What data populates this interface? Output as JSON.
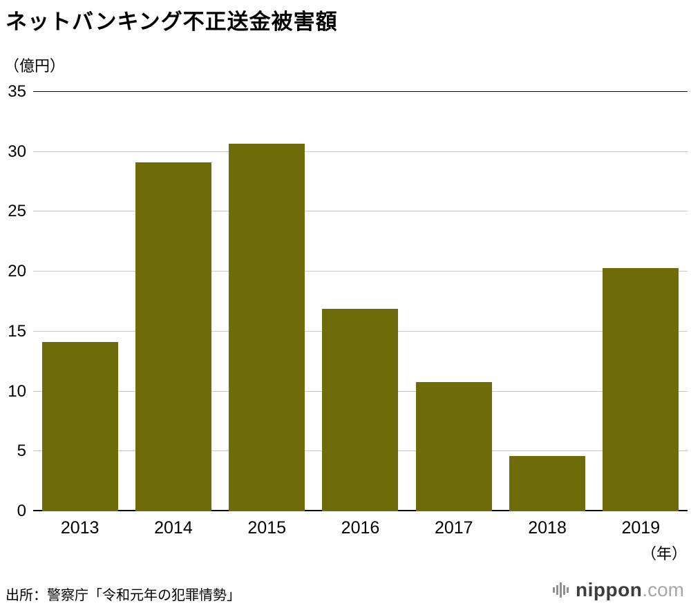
{
  "title": "ネットバンキング不正送金被害額",
  "y_unit": "（億円）",
  "x_unit": "（年）",
  "source": "出所：警察庁「令和元年の犯罪情勢」",
  "logo": {
    "name": "nippon",
    "tld": ".com"
  },
  "chart_data": {
    "type": "bar",
    "title": "ネットバンキング不正送金被害額",
    "categories": [
      "2013",
      "2014",
      "2015",
      "2016",
      "2017",
      "2018",
      "2019"
    ],
    "values": [
      14.1,
      29.1,
      30.7,
      16.9,
      10.8,
      4.6,
      20.3
    ],
    "xlabel": "年",
    "ylabel": "億円",
    "ylim": [
      0,
      35
    ],
    "yticks": [
      0,
      5,
      10,
      15,
      20,
      25,
      30,
      35
    ],
    "bar_color": "#6f6b09",
    "grid": true,
    "legend": false,
    "gridline_color": "#c9c9c9",
    "axis_color": "#000000"
  }
}
